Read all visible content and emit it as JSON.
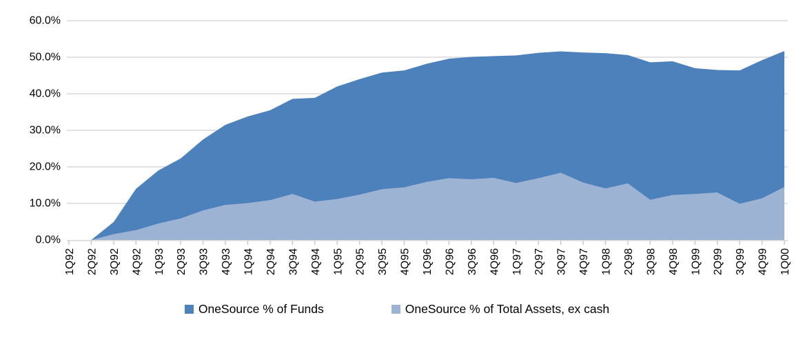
{
  "chart_data": {
    "type": "area",
    "title": "",
    "xlabel": "",
    "ylabel": "",
    "categories": [
      "1Q92",
      "2Q92",
      "3Q92",
      "4Q92",
      "1Q93",
      "2Q93",
      "3Q93",
      "4Q93",
      "1Q94",
      "2Q94",
      "3Q94",
      "4Q94",
      "1Q95",
      "2Q95",
      "3Q95",
      "4Q95",
      "1Q96",
      "2Q96",
      "3Q96",
      "4Q96",
      "1Q97",
      "2Q97",
      "3Q97",
      "4Q97",
      "1Q98",
      "2Q98",
      "3Q98",
      "4Q98",
      "1Q99",
      "2Q99",
      "3Q99",
      "4Q99",
      "1Q00"
    ],
    "series": [
      {
        "name": "OneSource % of Funds",
        "color": "#4C81BC",
        "values": [
          0,
          0,
          4.9,
          14.0,
          19.0,
          22.3,
          27.5,
          31.5,
          33.8,
          35.5,
          38.6,
          38.9,
          42.0,
          44.0,
          45.8,
          46.4,
          48.2,
          49.6,
          50.1,
          50.3,
          50.5,
          51.2,
          51.6,
          51.3,
          51.1,
          50.6,
          48.6,
          48.9,
          47.0,
          46.5,
          46.4,
          49.2,
          51.7
        ]
      },
      {
        "name": "OneSource % of Total Assets, ex cash",
        "color": "#9CB3D3",
        "values": [
          0,
          0,
          1.6,
          2.7,
          4.5,
          5.9,
          8.1,
          9.6,
          10.1,
          10.9,
          12.6,
          10.5,
          11.2,
          12.4,
          13.9,
          14.4,
          15.9,
          16.9,
          16.6,
          17.0,
          15.6,
          16.9,
          18.4,
          15.7,
          14.1,
          15.5,
          11.0,
          12.3,
          12.6,
          13.0,
          9.9,
          11.4,
          14.5
        ]
      }
    ],
    "ylim": [
      0,
      60
    ],
    "ytick_step": 10,
    "ytick_labels": [
      "0.0%",
      "10.0%",
      "20.0%",
      "30.0%",
      "40.0%",
      "50.0%",
      "60.0%"
    ],
    "grid": true,
    "gridline_color": "#D9D9D9",
    "axis_line_color": "#D9D9D9",
    "tick_color": "#C6C6C6",
    "axis_text_color": "#000000",
    "legend_position": "bottom"
  }
}
